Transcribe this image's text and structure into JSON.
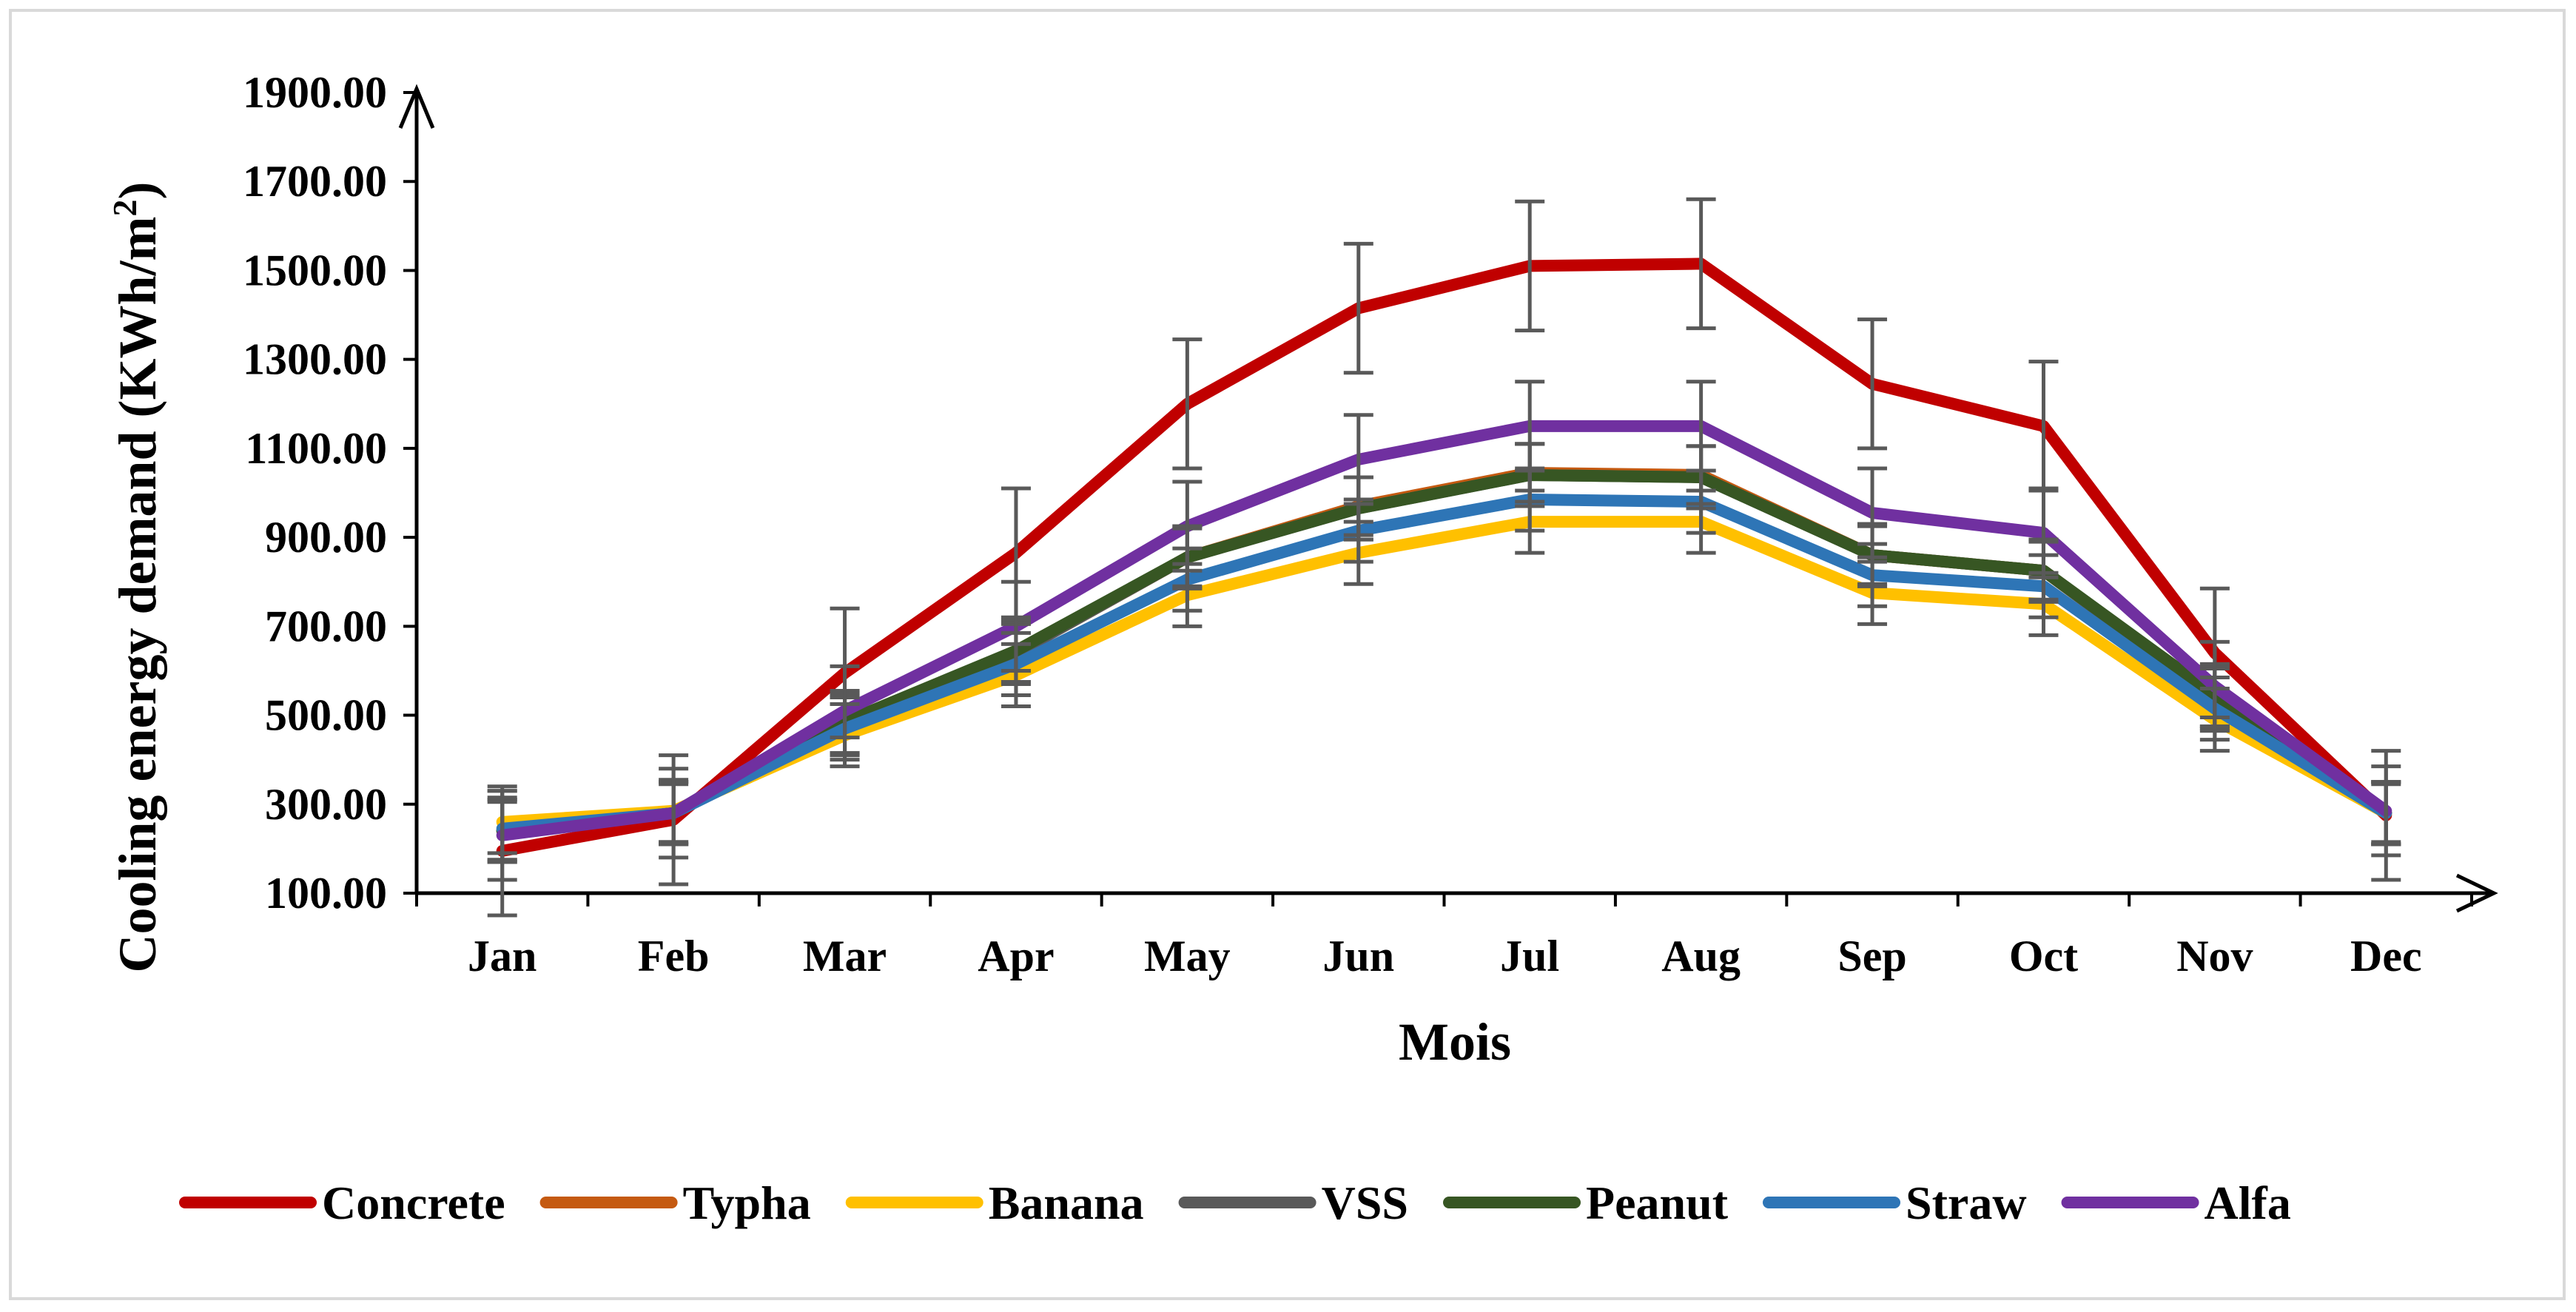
{
  "chart_data": {
    "type": "line",
    "categories": [
      "Jan",
      "Feb",
      "Mar",
      "Apr",
      "May",
      "Jun",
      "Jul",
      "Aug",
      "Sep",
      "Oct",
      "Nov",
      "Dec"
    ],
    "xlabel": "Mois",
    "ylabel": "Cooling energy demand (KWh/m",
    "ylabel_superscript": "2",
    "ylabel_suffix": ")",
    "ylim": [
      100,
      1900
    ],
    "yticks": [
      "100.00",
      "300.00",
      "500.00",
      "700.00",
      "900.00",
      "1100.00",
      "1300.00",
      "1500.00",
      "1700.00",
      "1900.00"
    ],
    "legend_position": "bottom",
    "error_bar_color": "#595959",
    "series": [
      {
        "name": "Concrete",
        "color": "#C00000",
        "error": 145,
        "values": [
          195,
          265,
          595,
          865,
          1200,
          1415,
          1510,
          1515,
          1245,
          1150,
          640,
          275
        ]
      },
      {
        "name": "Typha",
        "color": "#C55A11",
        "error": 65,
        "values": [
          240,
          280,
          480,
          640,
          855,
          970,
          1045,
          1040,
          860,
          825,
          540,
          280
        ]
      },
      {
        "name": "Banana",
        "color": "#FFC000",
        "error": 70,
        "values": [
          260,
          285,
          455,
          590,
          770,
          865,
          935,
          935,
          775,
          750,
          490,
          280
        ]
      },
      {
        "name": "VSS",
        "color": "#595959",
        "error": 70,
        "values": [
          240,
          280,
          480,
          640,
          855,
          965,
          1040,
          1035,
          860,
          825,
          540,
          280
        ]
      },
      {
        "name": "Peanut",
        "color": "#375623",
        "error": 70,
        "values": [
          240,
          280,
          485,
          645,
          855,
          965,
          1040,
          1035,
          860,
          825,
          545,
          280
        ]
      },
      {
        "name": "Straw",
        "color": "#2E75B6",
        "error": 70,
        "values": [
          245,
          280,
          470,
          615,
          805,
          915,
          985,
          980,
          815,
          790,
          515,
          280
        ]
      },
      {
        "name": "Alfa",
        "color": "#7030A0",
        "error": 100,
        "values": [
          230,
          280,
          510,
          700,
          925,
          1075,
          1150,
          1150,
          955,
          910,
          565,
          285
        ]
      }
    ]
  }
}
